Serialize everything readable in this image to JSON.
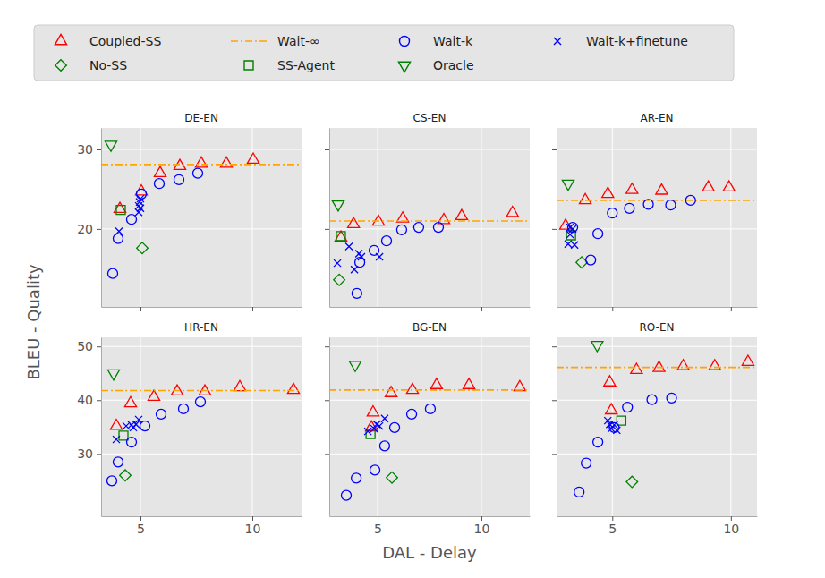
{
  "chart_data": {
    "type": "scatter",
    "x_label": "DAL - Delay",
    "y_label": "BLEU - Quality",
    "grid": true,
    "legend": "top",
    "series": [
      {
        "name": "Coupled-SS",
        "color": "#ff0000",
        "marker": "triangle-up"
      },
      {
        "name": "No-SS",
        "color": "#008000",
        "marker": "diamond"
      },
      {
        "name": "Wait-∞",
        "color": "#ffa500",
        "type": "hline",
        "line_style": "dashdot"
      },
      {
        "name": "SS-Agent",
        "color": "#008000",
        "marker": "square"
      },
      {
        "name": "Wait-k",
        "color": "#0000ff",
        "marker": "circle"
      },
      {
        "name": "Oracle",
        "color": "#008000",
        "marker": "triangle-down"
      },
      {
        "name": "Wait-k+finetune",
        "color": "#0000ff",
        "marker": "x"
      }
    ],
    "panels": [
      {
        "title": "DE-EN",
        "xlim": [
          3.24,
          12.2
        ],
        "ylim": [
          10.2,
          32.7
        ],
        "xticks": [
          5,
          10
        ],
        "yticks": [
          20,
          30
        ],
        "tick_labels": "y",
        "series": [
          {
            "x": [
              4.08,
              5.04,
              5.88,
              6.76,
              7.72,
              8.84,
              10.04
            ],
            "values": [
              22.5,
              24.7,
              27.0,
              27.9,
              28.2,
              28.2,
              28.7
            ]
          },
          {
            "x": [
              5.08
            ],
            "values": [
              17.6
            ]
          },
          {
            "values": [
              28.1
            ]
          },
          {
            "x": [
              4.12
            ],
            "values": [
              22.4
            ]
          },
          {
            "x": [
              3.76,
              4.0,
              4.6,
              5.04,
              5.84,
              6.72,
              7.56
            ],
            "values": [
              14.4,
              18.8,
              21.2,
              24.4,
              25.7,
              26.2,
              27.0
            ]
          },
          {
            "x": [
              3.68
            ],
            "values": [
              30.6
            ]
          },
          {
            "x": [
              4.04,
              4.92,
              4.92,
              4.96,
              5.0,
              5.0
            ],
            "values": [
              19.7,
              22.1,
              22.9,
              23.4,
              23.8,
              22.6
            ]
          }
        ]
      },
      {
        "title": "CS-EN",
        "xlim": [
          2.67,
          12.33
        ],
        "ylim": [
          10.2,
          32.7
        ],
        "xticks": [
          5,
          10
        ],
        "yticks": [
          20,
          30
        ],
        "tick_labels": false,
        "series": [
          {
            "x": [
              3.23,
              3.84,
              5.04,
              6.21,
              8.19,
              9.05,
              11.5
            ],
            "values": [
              18.9,
              20.6,
              20.9,
              21.3,
              21.1,
              21.6,
              22.0
            ]
          },
          {
            "x": [
              3.15
            ],
            "values": [
              13.6
            ]
          },
          {
            "values": [
              21.0
            ]
          },
          {
            "x": [
              3.23
            ],
            "values": [
              19.1
            ]
          },
          {
            "x": [
              4.0,
              4.14,
              4.83,
              5.43,
              6.16,
              6.98,
              7.93
            ],
            "values": [
              11.9,
              15.8,
              17.3,
              18.5,
              19.9,
              20.2,
              20.2
            ]
          },
          {
            "x": [
              3.1
            ],
            "values": [
              23.1
            ]
          },
          {
            "x": [
              3.06,
              3.62,
              3.88,
              4.1,
              4.22,
              5.09
            ],
            "values": [
              15.7,
              17.8,
              14.9,
              16.9,
              16.5,
              16.5
            ]
          }
        ]
      },
      {
        "title": "AR-EN",
        "xlim": [
          2.65,
          11.1
        ],
        "ylim": [
          10.2,
          32.7
        ],
        "xticks": [
          5,
          10
        ],
        "yticks": [
          20,
          30
        ],
        "tick_labels": false,
        "series": [
          {
            "x": [
              3.03,
              3.86,
              4.81,
              5.83,
              7.08,
              9.05,
              9.92
            ],
            "values": [
              20.4,
              23.6,
              24.4,
              24.9,
              24.8,
              25.2,
              25.2
            ]
          },
          {
            "x": [
              3.71
            ],
            "values": [
              15.8
            ]
          },
          {
            "values": [
              23.6
            ]
          },
          {
            "x": [
              3.26
            ],
            "values": [
              19.2
            ]
          },
          {
            "x": [
              3.33,
              4.09,
              4.39,
              5.0,
              5.72,
              6.52,
              7.46,
              8.3
            ],
            "values": [
              20.2,
              16.1,
              19.4,
              22.0,
              22.6,
              23.1,
              23.0,
              23.6
            ]
          },
          {
            "x": [
              3.14
            ],
            "values": [
              25.7
            ]
          },
          {
            "x": [
              3.22,
              3.33,
              3.14,
              3.41,
              3.22
            ],
            "values": [
              20.2,
              20.0,
              18.1,
              18.0,
              19.3
            ]
          }
        ]
      },
      {
        "title": "HR-EN",
        "xlim": [
          3.24,
          12.2
        ],
        "ylim": [
          18.4,
          51.7
        ],
        "xticks": [
          5,
          10
        ],
        "yticks": [
          30,
          40,
          50
        ],
        "tick_labels": true,
        "series": [
          {
            "x": [
              3.92,
              4.56,
              5.6,
              6.64,
              7.88,
              9.44,
              11.84
            ],
            "values": [
              35.2,
              39.4,
              40.6,
              41.6,
              41.6,
              42.4,
              41.9
            ]
          },
          {
            "x": [
              4.32
            ],
            "values": [
              26.0
            ]
          },
          {
            "values": [
              41.8
            ]
          },
          {
            "x": [
              4.24
            ],
            "values": [
              33.4
            ]
          },
          {
            "x": [
              3.72,
              4.0,
              4.6,
              5.2,
              5.92,
              6.92,
              7.68
            ],
            "values": [
              25.0,
              28.5,
              32.2,
              35.2,
              37.4,
              38.4,
              39.7
            ]
          },
          {
            "x": [
              3.8
            ],
            "values": [
              45.0
            ]
          },
          {
            "x": [
              3.92,
              4.36,
              4.6,
              4.8,
              4.92,
              4.68
            ],
            "values": [
              32.7,
              35.2,
              35.4,
              35.5,
              36.4,
              34.9
            ]
          }
        ]
      },
      {
        "title": "BG-EN",
        "xlim": [
          2.67,
          12.33
        ],
        "ylim": [
          18.4,
          51.7
        ],
        "xticks": [
          5,
          10
        ],
        "yticks": [
          30,
          40,
          50
        ],
        "tick_labels": "x",
        "series": [
          {
            "x": [
              4.7,
              4.78,
              5.65,
              6.68,
              7.84,
              9.4,
              11.85
            ],
            "values": [
              34.9,
              37.7,
              41.3,
              41.9,
              42.8,
              42.8,
              42.4
            ]
          },
          {
            "x": [
              5.69
            ],
            "values": [
              25.6
            ]
          },
          {
            "values": [
              41.9
            ]
          },
          {
            "x": [
              4.66
            ],
            "values": [
              33.7
            ]
          },
          {
            "x": [
              3.49,
              3.97,
              4.87,
              5.34,
              5.82,
              6.64,
              7.54
            ],
            "values": [
              22.3,
              25.5,
              27.0,
              31.5,
              34.9,
              37.4,
              38.4
            ]
          },
          {
            "x": [
              3.92
            ],
            "values": [
              46.6
            ]
          },
          {
            "x": [
              4.53,
              4.83,
              4.96,
              5.09,
              5.34
            ],
            "values": [
              34.2,
              34.7,
              35.5,
              35.2,
              36.6
            ]
          }
        ]
      },
      {
        "title": "RO-EN",
        "xlim": [
          2.65,
          11.1
        ],
        "ylim": [
          18.4,
          51.7
        ],
        "xticks": [
          5,
          10
        ],
        "yticks": [
          30,
          40,
          50
        ],
        "tick_labels": "x",
        "series": [
          {
            "x": [
              4.96,
              4.89,
              6.02,
              6.97,
              7.99,
              9.32,
              10.72
            ],
            "values": [
              38.1,
              43.3,
              45.6,
              46.0,
              46.3,
              46.3,
              47.1
            ]
          },
          {
            "x": [
              5.83
            ],
            "values": [
              24.8
            ]
          },
          {
            "values": [
              46.1
            ]
          },
          {
            "x": [
              5.38
            ],
            "values": [
              36.2
            ]
          },
          {
            "x": [
              3.6,
              3.9,
              4.39,
              5.08,
              5.64,
              6.67,
              7.5
            ],
            "values": [
              22.9,
              28.3,
              32.2,
              34.9,
              38.7,
              40.1,
              40.4
            ]
          },
          {
            "x": [
              4.36
            ],
            "values": [
              50.3
            ]
          },
          {
            "x": [
              4.81,
              4.89,
              4.96,
              5.08,
              5.19
            ],
            "values": [
              36.2,
              35.5,
              34.7,
              35.4,
              34.4
            ]
          }
        ]
      }
    ]
  }
}
